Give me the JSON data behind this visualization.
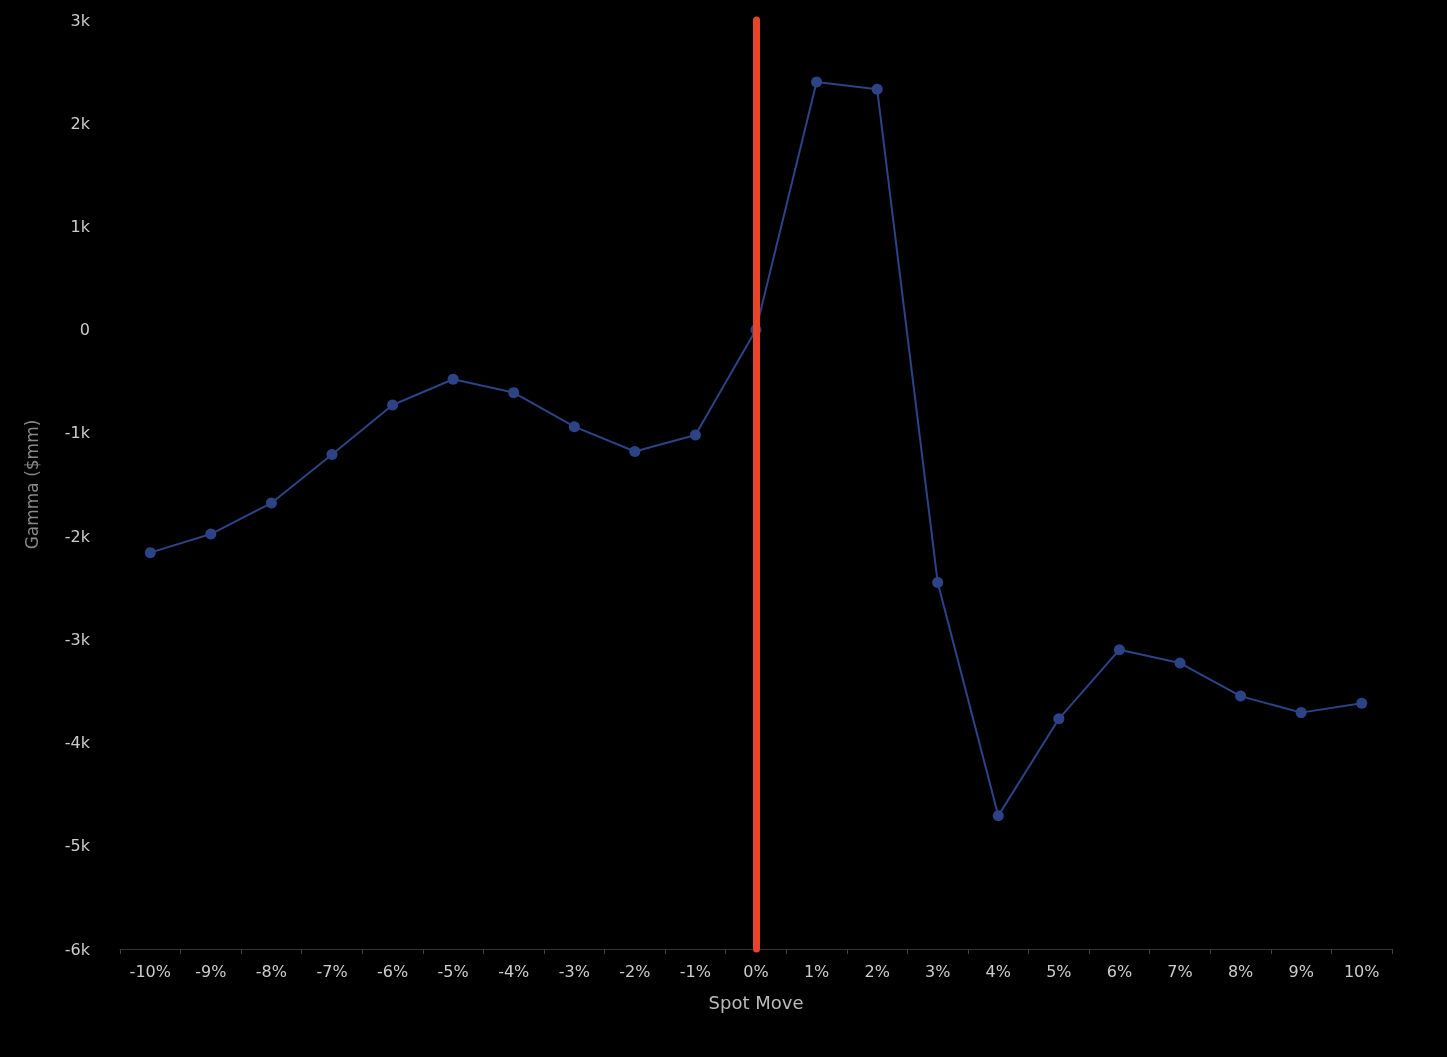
{
  "chart_data": {
    "type": "line",
    "xlabel": "Spot Move",
    "ylabel": "Gamma ($mm)",
    "categories": [
      "-10%",
      "-9%",
      "-8%",
      "-7%",
      "-6%",
      "-5%",
      "-4%",
      "-3%",
      "-2%",
      "-1%",
      "0%",
      "1%",
      "2%",
      "3%",
      "4%",
      "5%",
      "6%",
      "7%",
      "8%",
      "9%",
      "10%"
    ],
    "series": [
      {
        "color": "#2c4386",
        "values": [
          -2160,
          -1980,
          -1680,
          -1210,
          -730,
          -480,
          -610,
          -940,
          -1180,
          -1020,
          0,
          2400,
          2330,
          -2450,
          -4710,
          -3770,
          -3100,
          -3230,
          -3550,
          -3710,
          -3620
        ]
      }
    ],
    "ylim": [
      -6000,
      3000
    ],
    "yticks": [
      {
        "value": -6000,
        "label": "-6k"
      },
      {
        "value": -5000,
        "label": "-5k"
      },
      {
        "value": -4000,
        "label": "-4k"
      },
      {
        "value": -3000,
        "label": "-3k"
      },
      {
        "value": -2000,
        "label": "-2k"
      },
      {
        "value": -1000,
        "label": "-1k"
      },
      0,
      {
        "value": 1000,
        "label": "1k"
      },
      {
        "value": 2000,
        "label": "2k"
      },
      {
        "value": 3000,
        "label": "3k"
      }
    ],
    "ref_lines": [
      {
        "axis": "x",
        "value": "0%",
        "color": "#e8442a"
      }
    ],
    "grid": false,
    "marker": "circle",
    "line_style": "solid"
  }
}
